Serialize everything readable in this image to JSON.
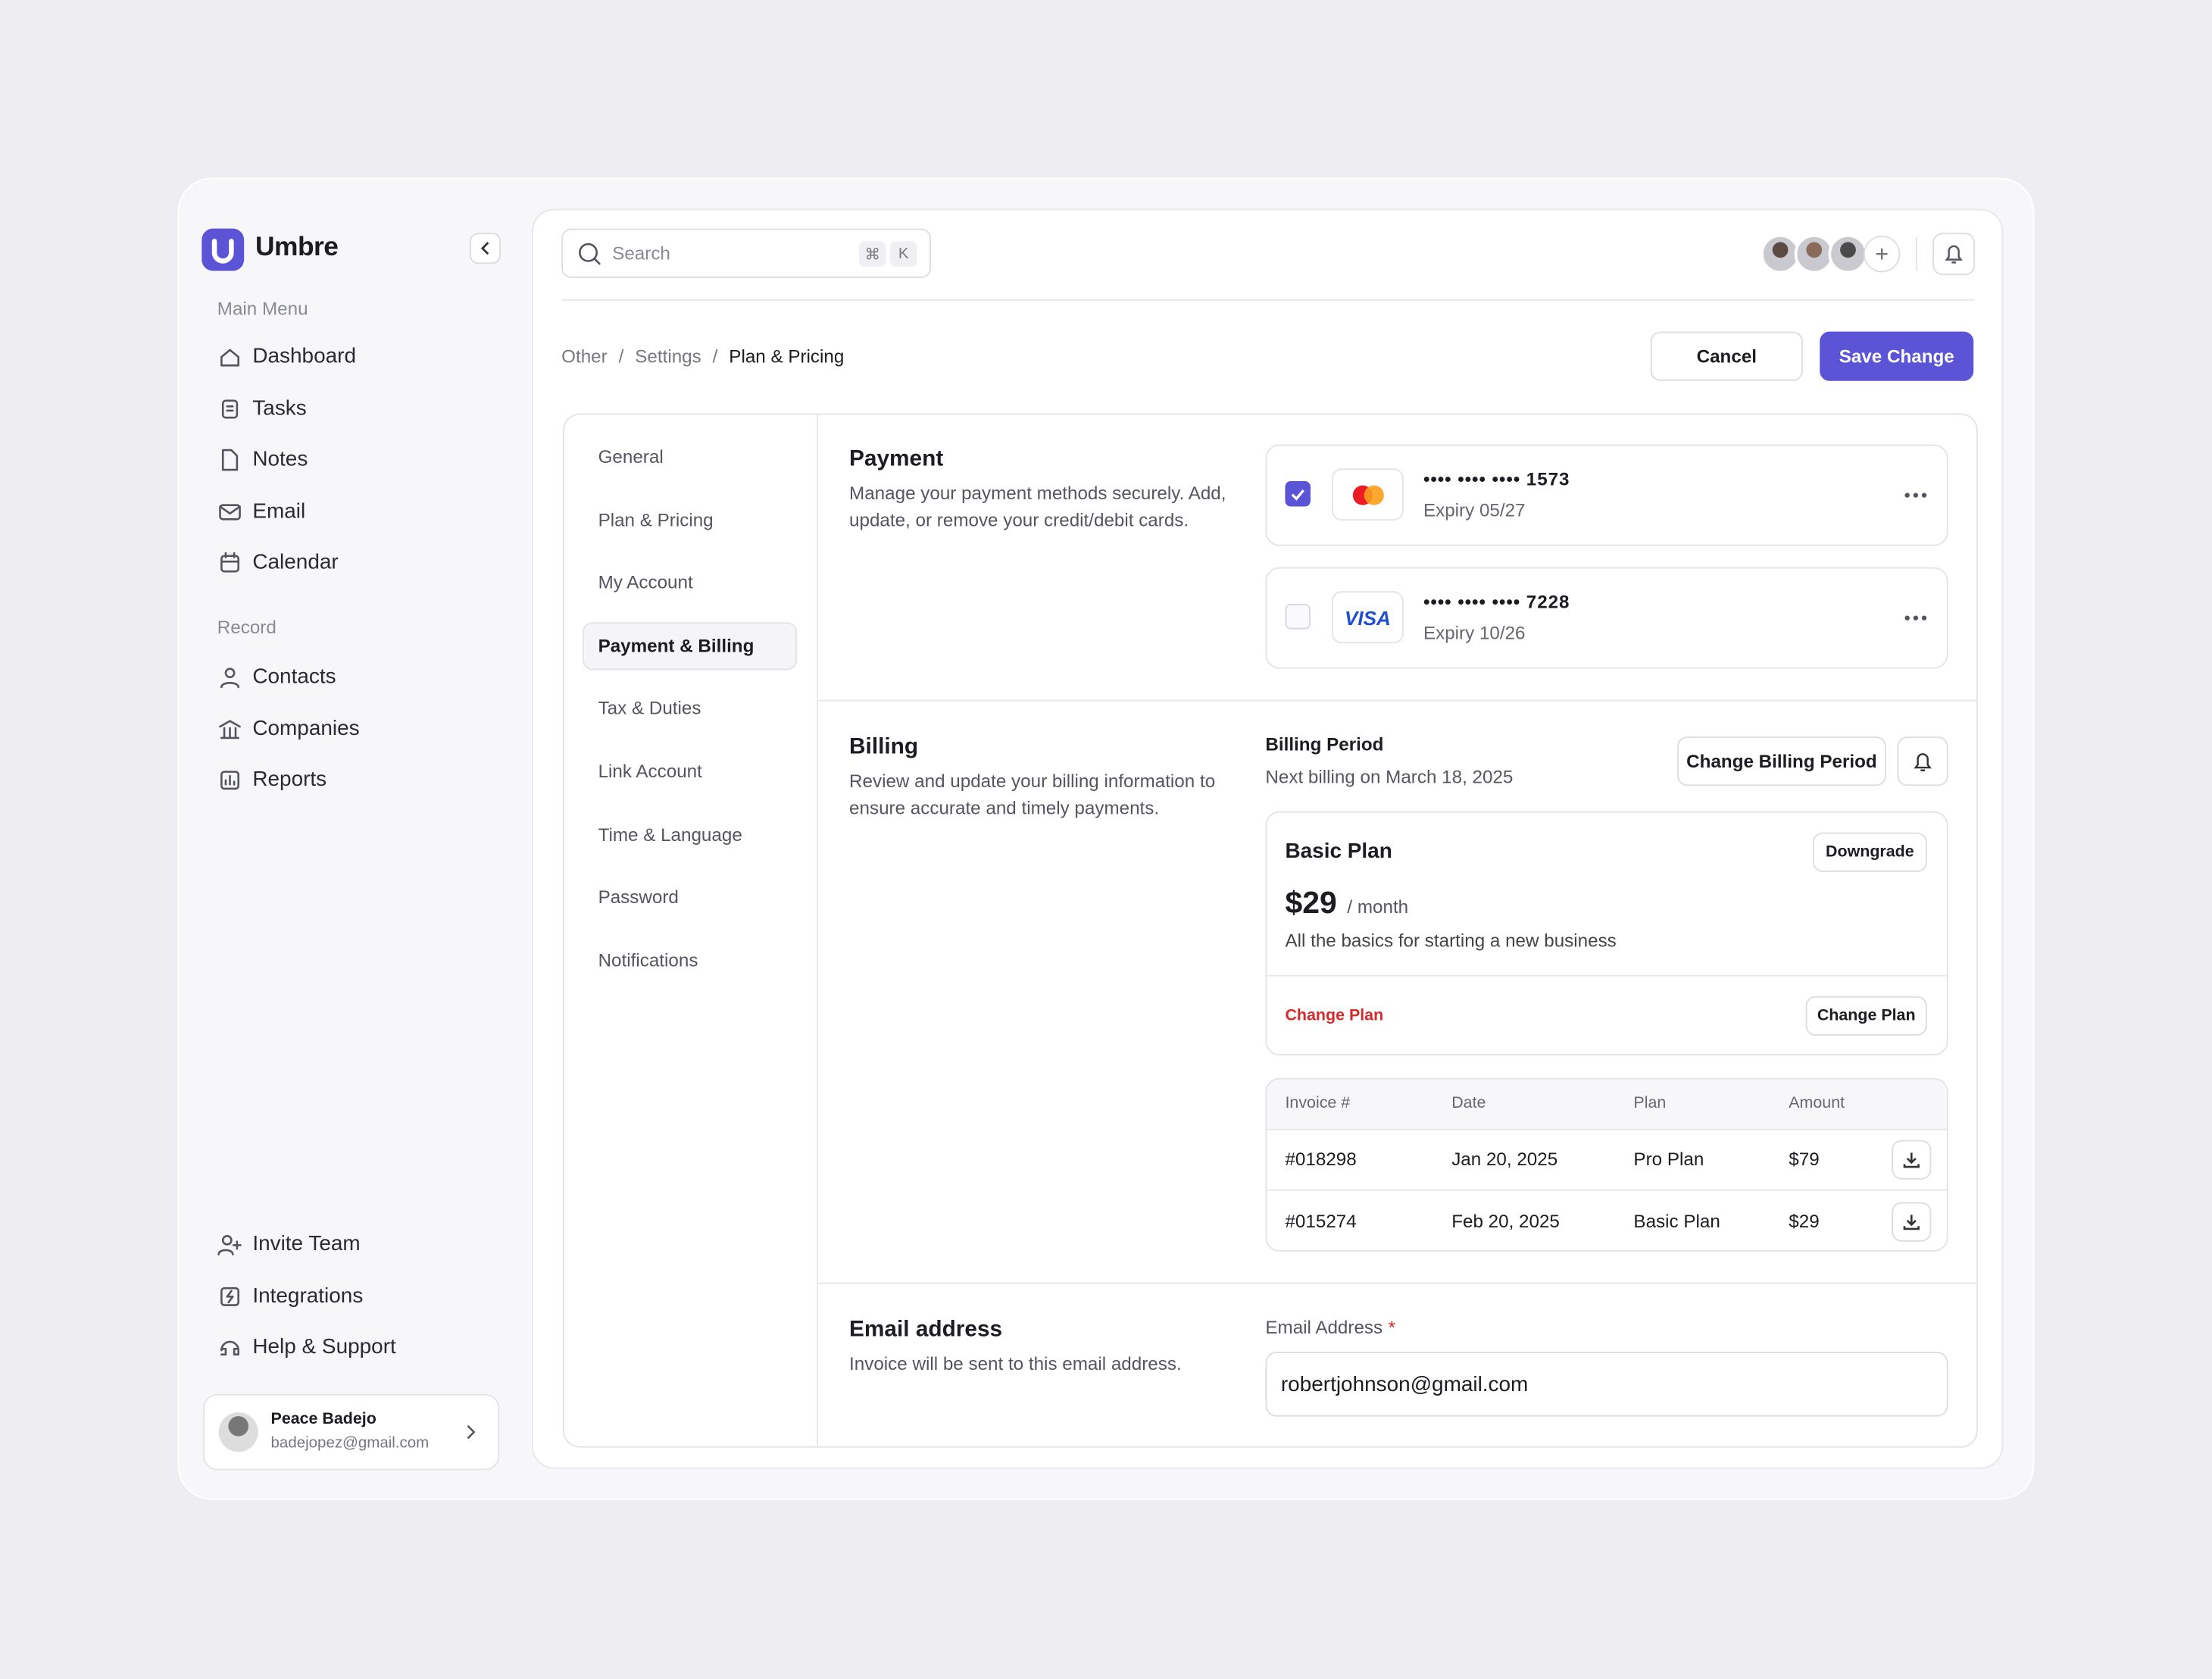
{
  "app": {
    "name": "Umbre"
  },
  "sidebar": {
    "main_menu_label": "Main Menu",
    "main_menu": [
      "Dashboard",
      "Tasks",
      "Notes",
      "Email",
      "Calendar"
    ],
    "record_label": "Record",
    "record": [
      "Contacts",
      "Companies",
      "Reports"
    ],
    "bottom": [
      "Invite Team",
      "Integrations",
      "Help & Support"
    ]
  },
  "user": {
    "name": "Peace Badejo",
    "email": "badejopez@gmail.com"
  },
  "search": {
    "placeholder": "Search",
    "shortcut": [
      "⌘",
      "K"
    ]
  },
  "breadcrumb": {
    "items": [
      "Other",
      "Settings",
      "Plan & Pricing"
    ],
    "separator": "/"
  },
  "actions": {
    "cancel": "Cancel",
    "save": "Save Change"
  },
  "settings_nav": {
    "items": [
      "General",
      "Plan & Pricing",
      "My Account",
      "Payment & Billing",
      "Tax & Duties",
      "Link Account",
      "Time & Language",
      "Password",
      "Notifications"
    ],
    "active": 3
  },
  "payment": {
    "title": "Payment",
    "description": "Manage your payment methods securely. Add, update, or remove your credit/debit cards.",
    "cards": [
      {
        "number": "•••• •••• •••• 1573",
        "expiry": "Expiry 05/27",
        "selected": true
      },
      {
        "logo": "VISA",
        "number": "•••• •••• •••• 7228",
        "expiry": "Expiry 10/26",
        "selected": false
      }
    ]
  },
  "billing": {
    "title": "Billing",
    "description": "Review and update your billing information to ensure accurate and timely payments.",
    "period_label": "Billing Period",
    "next_billing": "Next billing on March 18, 2025",
    "change_period": "Change Billing Period",
    "plan": {
      "name": "Basic Plan",
      "price": "$29",
      "period": "/ month",
      "description": "All the basics for starting a new business",
      "downgrade": "Downgrade",
      "change_link": "Change Plan",
      "change_button": "Change Plan"
    },
    "invoices": {
      "columns": [
        "Invoice #",
        "Date",
        "Plan",
        "Amount"
      ],
      "rows": [
        [
          "#018298",
          "Jan 20, 2025",
          "Pro Plan",
          "$79"
        ],
        [
          "#015274",
          "Feb 20, 2025",
          "Basic Plan",
          "$29"
        ]
      ]
    }
  },
  "email": {
    "title": "Email address",
    "description": "Invoice will be sent to this email address.",
    "field_label": "Email Address",
    "required": "*",
    "value": "robertjohnson@gmail.com"
  }
}
